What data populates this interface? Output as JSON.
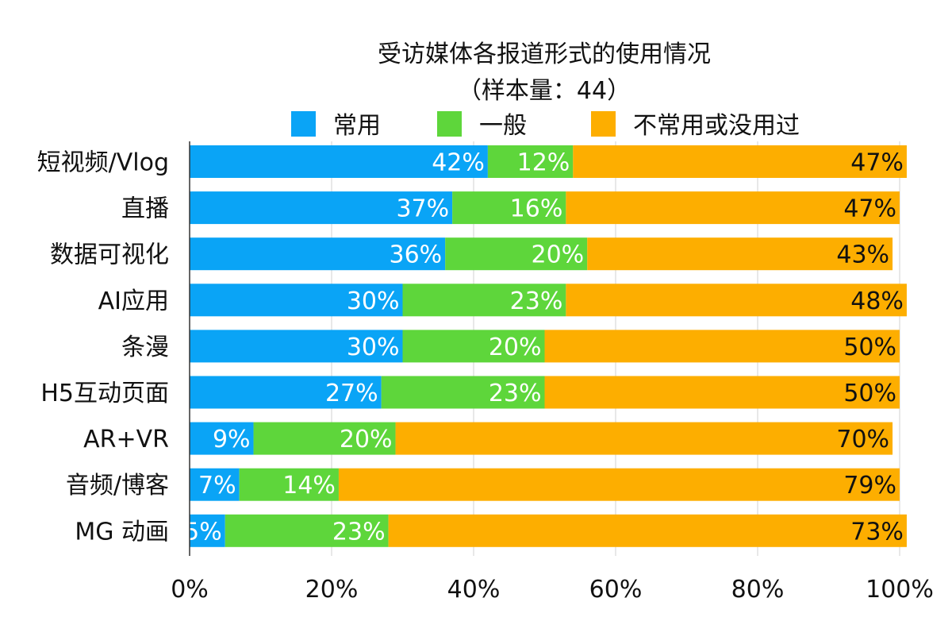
{
  "chart_data": {
    "type": "bar",
    "orientation": "horizontal",
    "stacked": true,
    "title": "受访媒体各报道形式的使用情况",
    "subtitle": "（样本量：44）",
    "xlabel": "",
    "ylabel": "",
    "xlim": [
      0,
      100
    ],
    "x_ticks": [
      "0%",
      "20%",
      "40%",
      "60%",
      "80%",
      "100%"
    ],
    "grid": true,
    "legend_position": "top",
    "categories": [
      "短视频/Vlog",
      "直播",
      "数据可视化",
      "AI应用",
      "条漫",
      "H5互动页面",
      "AR+VR",
      "音频/博客",
      "MG 动画"
    ],
    "series": [
      {
        "name": "常用",
        "color": "#0AA4F6",
        "label_color": "#ffffff",
        "values": [
          42,
          37,
          36,
          30,
          30,
          27,
          9,
          7,
          5
        ]
      },
      {
        "name": "一般",
        "color": "#5ED63B",
        "label_color": "#ffffff",
        "values": [
          12,
          16,
          20,
          23,
          20,
          23,
          20,
          14,
          23
        ]
      },
      {
        "name": "不常用或没用过",
        "color": "#FDAE00",
        "label_color": "#111111",
        "values": [
          47,
          47,
          43,
          48,
          50,
          50,
          70,
          79,
          73
        ]
      }
    ]
  }
}
